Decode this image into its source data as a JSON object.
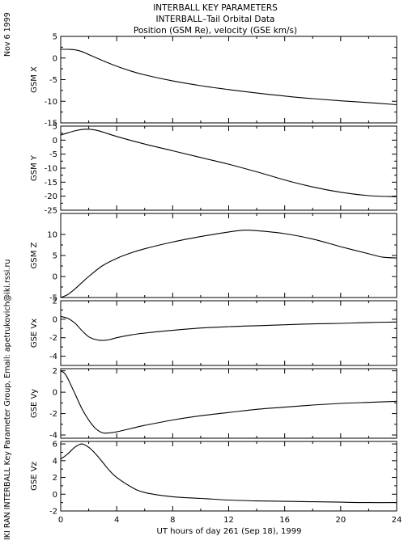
{
  "header": {
    "line1": "INTERBALL KEY PARAMETERS",
    "line2": "INTERBALL–Tail Orbital Data",
    "line3": "Position (GSM Re), velocity (GSE km/s)"
  },
  "side_date": "Nov  6 1999",
  "side_credit": "IKI RAN INTERBALL Key Parameter Group, Email: apetrukovich@iki.rssi.ru",
  "colors": {
    "axis": "#000000",
    "line": "#000000",
    "background": "#ffffff"
  },
  "chart_data": {
    "type": "line",
    "xlabel": "UT hours of day 261 (Sep 18), 1999",
    "xlim": [
      0,
      24
    ],
    "xticks": [
      0,
      4,
      8,
      12,
      16,
      20,
      24
    ],
    "panels": [
      {
        "ylabel": "GSM X",
        "ylim": [
          -15,
          5
        ],
        "yticks": [
          -15,
          -10,
          -5,
          0,
          5
        ],
        "x": [
          0,
          0.5,
          1,
          1.5,
          2,
          3,
          4,
          5,
          6,
          8,
          10,
          12,
          14,
          16,
          18,
          20,
          22,
          24
        ],
        "values": [
          2,
          2,
          1.9,
          1.5,
          0.8,
          -0.6,
          -1.9,
          -3.0,
          -3.9,
          -5.3,
          -6.4,
          -7.3,
          -8.1,
          -8.8,
          -9.4,
          -9.9,
          -10.3,
          -10.8
        ]
      },
      {
        "ylabel": "GSM Y",
        "ylim": [
          -25,
          5
        ],
        "yticks": [
          -25,
          -20,
          -15,
          -10,
          -5,
          0,
          5
        ],
        "x": [
          0,
          0.5,
          1,
          1.5,
          2,
          2.5,
          3,
          4,
          6,
          8,
          10,
          12,
          14,
          16,
          18,
          20,
          22,
          24
        ],
        "values": [
          1.8,
          2.6,
          3.3,
          3.8,
          3.9,
          3.6,
          2.9,
          1.3,
          -1.4,
          -3.8,
          -6.2,
          -8.6,
          -11.3,
          -14.2,
          -16.7,
          -18.6,
          -19.8,
          -20.2
        ]
      },
      {
        "ylabel": "GSM Z",
        "ylim": [
          -5,
          15
        ],
        "yticks": [
          -5,
          0,
          5,
          10
        ],
        "x": [
          0,
          0.5,
          1,
          1.5,
          2,
          3,
          4,
          5,
          6,
          8,
          10,
          12,
          13,
          14,
          16,
          18,
          20,
          22,
          23,
          24
        ],
        "values": [
          -5,
          -4.3,
          -3.0,
          -1.5,
          0,
          2.6,
          4.3,
          5.6,
          6.6,
          8.2,
          9.5,
          10.6,
          11,
          10.9,
          10.2,
          8.9,
          7.1,
          5.4,
          4.6,
          4.4
        ]
      },
      {
        "ylabel": "GSE Vx",
        "ylim": [
          -5,
          2
        ],
        "yticks": [
          -4,
          -2,
          0,
          2
        ],
        "x": [
          0,
          0.5,
          1,
          1.5,
          2,
          2.5,
          3,
          3.5,
          4,
          5,
          6,
          8,
          10,
          12,
          14,
          16,
          18,
          20,
          22,
          24
        ],
        "values": [
          0.3,
          0.1,
          -0.4,
          -1.2,
          -1.9,
          -2.2,
          -2.3,
          -2.2,
          -2.0,
          -1.7,
          -1.5,
          -1.2,
          -0.95,
          -0.8,
          -0.7,
          -0.6,
          -0.5,
          -0.45,
          -0.35,
          -0.3
        ]
      },
      {
        "ylabel": "GSE Vy",
        "ylim": [
          -4.3,
          2.2
        ],
        "yticks": [
          -4,
          -2,
          0,
          2
        ],
        "x": [
          0,
          0.25,
          0.5,
          1,
          1.5,
          2,
          2.5,
          3,
          3.5,
          4,
          5,
          6,
          8,
          10,
          12,
          14,
          16,
          18,
          20,
          22,
          24
        ],
        "values": [
          2.0,
          1.8,
          1.3,
          -0.1,
          -1.5,
          -2.6,
          -3.4,
          -3.8,
          -3.8,
          -3.7,
          -3.4,
          -3.1,
          -2.6,
          -2.2,
          -1.9,
          -1.6,
          -1.4,
          -1.2,
          -1.05,
          -0.95,
          -0.85
        ]
      },
      {
        "ylabel": "GSE Vz",
        "ylim": [
          -2,
          6.3
        ],
        "yticks": [
          -2,
          0,
          2,
          4,
          6
        ],
        "x": [
          0,
          0.5,
          1,
          1.5,
          2,
          2.5,
          3,
          3.5,
          4,
          5,
          6,
          8,
          10,
          12,
          14,
          16,
          18,
          20,
          22,
          24
        ],
        "values": [
          4.2,
          4.8,
          5.6,
          6.0,
          5.6,
          4.8,
          3.8,
          2.8,
          2.0,
          0.9,
          0.2,
          -0.3,
          -0.5,
          -0.7,
          -0.8,
          -0.85,
          -0.9,
          -0.95,
          -1.0,
          -1.0
        ]
      }
    ]
  }
}
